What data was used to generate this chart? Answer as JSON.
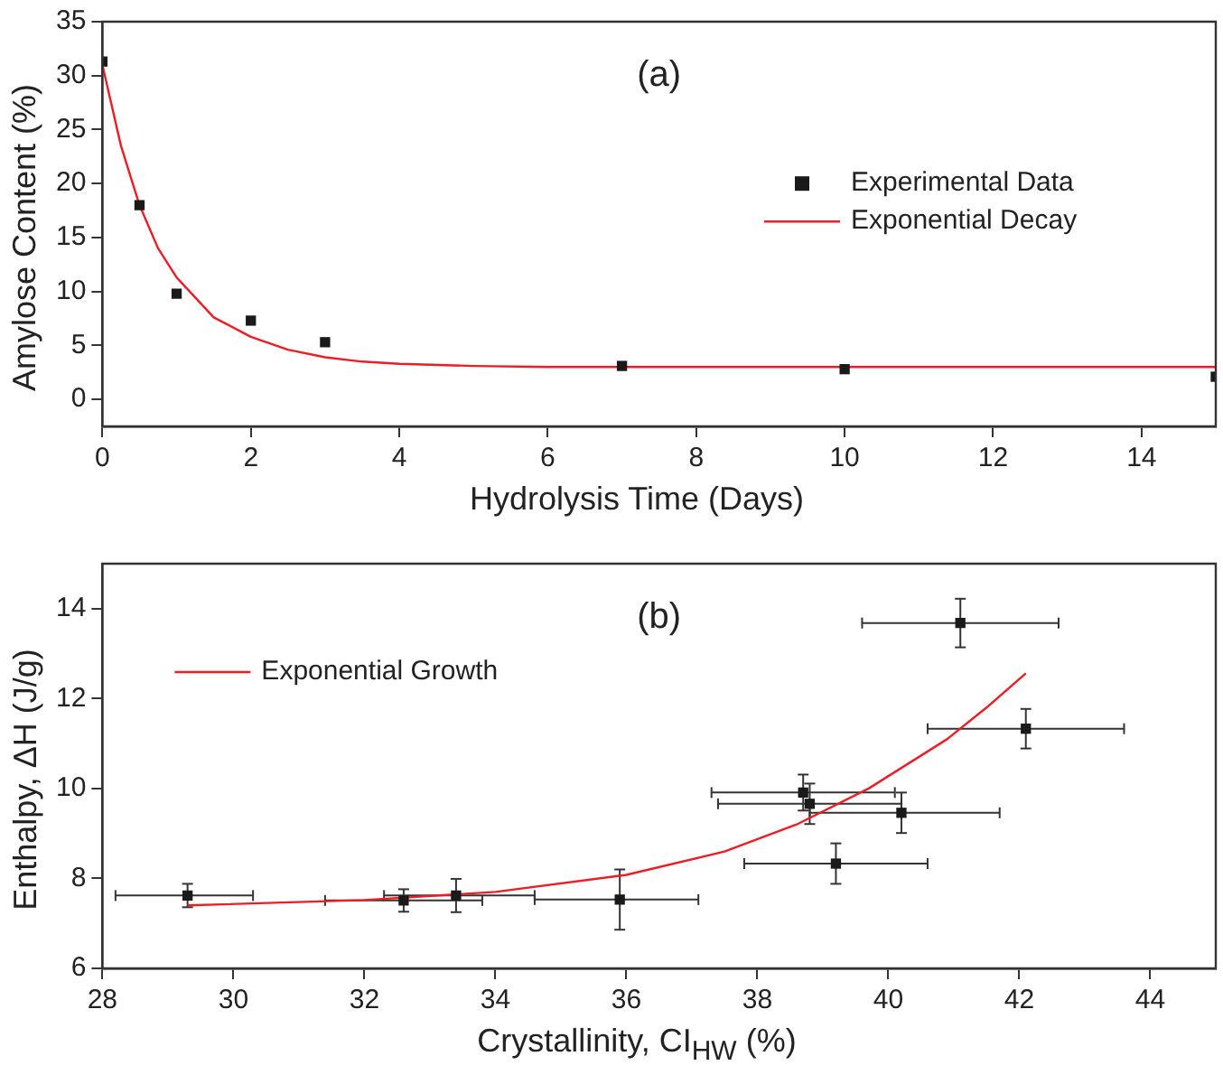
{
  "chart_data": [
    {
      "type": "scatter",
      "xlabel": "Hydrolysis Time (Days)",
      "ylabel": "Amylose Content (%)",
      "annotations": [
        "(a)"
      ],
      "xlim": [
        0,
        15
      ],
      "xticks": [
        0,
        2,
        4,
        6,
        8,
        10,
        12,
        14
      ],
      "ylim": [
        -2.5,
        35
      ],
      "yticks": [
        0,
        5,
        10,
        15,
        20,
        25,
        30,
        35
      ],
      "grid": false,
      "legend": "right",
      "series": [
        {
          "name": "Experimental Data",
          "marker": "square",
          "color": "#1a1a1a",
          "x": [
            0,
            0.5,
            1,
            2,
            3,
            7,
            10,
            15
          ],
          "values": [
            31.3,
            18,
            9.8,
            7.3,
            5.3,
            3.1,
            2.8,
            2.1
          ]
        },
        {
          "name": "Exponential Decay",
          "type": "line",
          "marker": "none",
          "color": "#ee1c24",
          "x": [
            0,
            0.25,
            0.5,
            0.75,
            1,
            1.5,
            2,
            2.5,
            3,
            3.5,
            4,
            5,
            6,
            8,
            10,
            12,
            15
          ],
          "values": [
            31,
            23.5,
            18,
            14,
            11.3,
            7.6,
            5.8,
            4.6,
            3.9,
            3.5,
            3.3,
            3.1,
            3,
            3,
            3,
            3,
            3
          ]
        }
      ]
    },
    {
      "type": "scatter",
      "xlabel": "Crystallinity, CI$_{HW}$ (%)",
      "ylabel": "Enthalpy, ΔH (J/g)",
      "annotations": [
        "(b)"
      ],
      "xlim": [
        28,
        45
      ],
      "xticks": [
        28,
        30,
        32,
        34,
        36,
        38,
        40,
        42,
        44
      ],
      "ylim": [
        6,
        15
      ],
      "yticks": [
        6,
        8,
        10,
        12,
        14
      ],
      "grid": false,
      "legend": "top left",
      "series": [
        {
          "marker": "square",
          "color": "#1a1a1a",
          "x": [
            29.3,
            32.6,
            33.4,
            35.9,
            38.7,
            38.8,
            40.2,
            39.2,
            41.1,
            42.1
          ],
          "values": [
            7.62,
            7.51,
            7.62,
            7.53,
            9.91,
            9.66,
            9.46,
            8.33,
            13.68,
            11.33
          ],
          "errors": [
            0.26,
            0.25,
            0.37,
            0.67,
            0.4,
            0.45,
            0.45,
            0.45,
            0.54,
            0.44
          ],
          "xerrors": [
            [
              28.2,
              30.3
            ],
            [
              31.4,
              33.8
            ],
            [
              32.3,
              34.6
            ],
            [
              34.6,
              37.1
            ],
            [
              37.3,
              40.1
            ],
            [
              37.4,
              40.2
            ],
            [
              38.8,
              41.7
            ],
            [
              37.8,
              40.6
            ],
            [
              39.6,
              42.6
            ],
            [
              40.6,
              43.6
            ]
          ]
        },
        {
          "name": "Exponential Growth",
          "type": "line",
          "marker": "none",
          "color": "#ee1c24",
          "x": [
            29.3,
            32,
            34,
            36,
            37.5,
            38.6,
            39.7,
            40.9,
            41.5,
            42.1
          ],
          "values": [
            7.4,
            7.52,
            7.7,
            8.08,
            8.6,
            9.2,
            10,
            11.1,
            11.8,
            12.56
          ]
        }
      ]
    }
  ]
}
